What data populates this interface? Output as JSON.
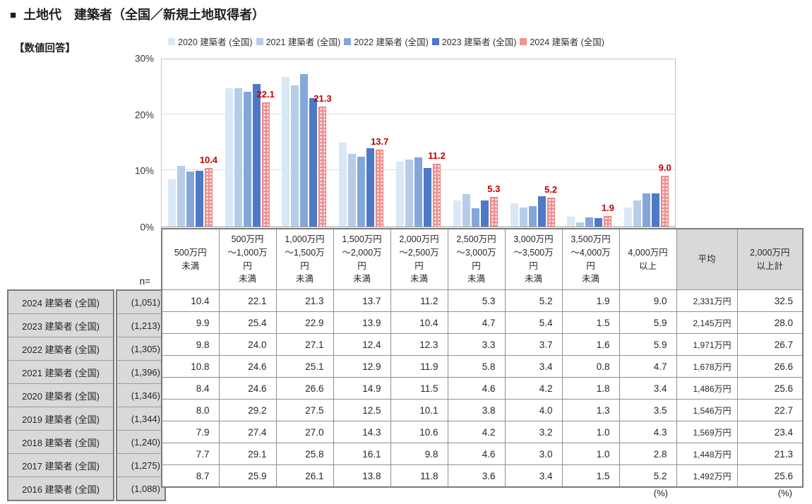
{
  "header": {
    "bullet": "■",
    "title": "土地代　建築者（全国／新規土地取得者）",
    "subtitle": "【数値回答】"
  },
  "chart_data": {
    "type": "bar",
    "title": "土地代 建築者（全国／新規土地取得者）数値回答",
    "categories": [
      "500万円未満",
      "500万円～1,000万円未満",
      "1,000万円～1,500万円未満",
      "1,500万円～2,000万円未満",
      "2,000万円～2,500万円未満",
      "2,500万円～3,000万円未満",
      "3,000万円～3,500万円未満",
      "3,500万円～4,000万円未満",
      "4,000万円以上"
    ],
    "series": [
      {
        "name": "2020 建築者 (全国)",
        "color": "#d9e8f5",
        "values": [
          8.4,
          24.6,
          26.6,
          14.9,
          11.5,
          4.6,
          4.2,
          1.8,
          3.4
        ]
      },
      {
        "name": "2021 建築者 (全国)",
        "color": "#b7cce7",
        "values": [
          10.8,
          24.6,
          25.1,
          12.9,
          11.9,
          5.8,
          3.4,
          0.8,
          4.7
        ]
      },
      {
        "name": "2022 建築者 (全国)",
        "color": "#84a7da",
        "values": [
          9.8,
          24.0,
          27.1,
          12.4,
          12.3,
          3.3,
          3.7,
          1.6,
          5.9
        ]
      },
      {
        "name": "2023 建築者 (全国)",
        "color": "#4d79c7",
        "values": [
          9.9,
          25.4,
          22.9,
          13.9,
          10.4,
          4.7,
          5.4,
          1.5,
          5.9
        ]
      },
      {
        "name": "2024 建築者 (全国)",
        "color": "#f09292",
        "pattern": "white-dots",
        "values": [
          10.4,
          22.1,
          21.3,
          13.7,
          11.2,
          5.3,
          5.2,
          1.9,
          9.0
        ]
      }
    ],
    "data_labels": {
      "series": "2024 建築者 (全国)",
      "color": "#c00000",
      "values": [
        10.4,
        22.1,
        21.3,
        13.7,
        11.2,
        5.3,
        5.2,
        1.9,
        9.0
      ]
    },
    "ylim": [
      0,
      30
    ],
    "yticks": [
      "30%",
      "20%",
      "10%",
      "0%"
    ],
    "grid": true,
    "legend_position": "top"
  },
  "table": {
    "n_label": "n=",
    "column_headers": [
      "500万円\n未満",
      "500万円\n～1,000万\n円\n未満",
      "1,000万円\n～1,500万\n円\n未満",
      "1,500万円\n～2,000万\n円\n未満",
      "2,000万円\n～2,500万\n円\n未満",
      "2,500万円\n～3,000万\n円\n未満",
      "3,000万円\n～3,500万\n円\n未満",
      "3,500万円\n～4,000万\n円\n未満",
      "4,000万円\n以上",
      "平均",
      "2,000万円\n以上計"
    ],
    "rows": [
      {
        "label": "2024 建築者 (全国)",
        "n": "(1,051)",
        "values": [
          10.4,
          22.1,
          21.3,
          13.7,
          11.2,
          5.3,
          5.2,
          1.9,
          9.0
        ],
        "average": "2,331万円",
        "total_over_2000": 32.5
      },
      {
        "label": "2023 建築者 (全国)",
        "n": "(1,213)",
        "values": [
          9.9,
          25.4,
          22.9,
          13.9,
          10.4,
          4.7,
          5.4,
          1.5,
          5.9
        ],
        "average": "2,145万円",
        "total_over_2000": 28.0
      },
      {
        "label": "2022 建築者 (全国)",
        "n": "(1,305)",
        "values": [
          9.8,
          24.0,
          27.1,
          12.4,
          12.3,
          3.3,
          3.7,
          1.6,
          5.9
        ],
        "average": "1,971万円",
        "total_over_2000": 26.7
      },
      {
        "label": "2021 建築者 (全国)",
        "n": "(1,396)",
        "values": [
          10.8,
          24.6,
          25.1,
          12.9,
          11.9,
          5.8,
          3.4,
          0.8,
          4.7
        ],
        "average": "1,678万円",
        "total_over_2000": 26.6
      },
      {
        "label": "2020 建築者 (全国)",
        "n": "(1,346)",
        "values": [
          8.4,
          24.6,
          26.6,
          14.9,
          11.5,
          4.6,
          4.2,
          1.8,
          3.4
        ],
        "average": "1,486万円",
        "total_over_2000": 25.6
      },
      {
        "label": "2019 建築者 (全国)",
        "n": "(1,344)",
        "values": [
          8.0,
          29.2,
          27.5,
          12.5,
          10.1,
          3.8,
          4.0,
          1.3,
          3.5
        ],
        "average": "1,546万円",
        "total_over_2000": 22.7
      },
      {
        "label": "2018 建築者 (全国)",
        "n": "(1,240)",
        "values": [
          7.9,
          27.4,
          27.0,
          14.3,
          10.6,
          4.2,
          3.2,
          1.0,
          4.3
        ],
        "average": "1,569万円",
        "total_over_2000": 23.4
      },
      {
        "label": "2017 建築者 (全国)",
        "n": "(1,275)",
        "values": [
          7.7,
          29.1,
          25.8,
          16.1,
          9.8,
          4.6,
          3.0,
          1.0,
          2.8
        ],
        "average": "1,448万円",
        "total_over_2000": 21.3
      },
      {
        "label": "2016 建築者 (全国)",
        "n": "(1,088)",
        "values": [
          8.7,
          25.9,
          26.1,
          13.8,
          11.8,
          3.6,
          3.4,
          1.5,
          5.2
        ],
        "average": "1,492万円",
        "total_over_2000": 25.6
      }
    ],
    "unit_notes": [
      "(%)",
      "(%)"
    ]
  }
}
